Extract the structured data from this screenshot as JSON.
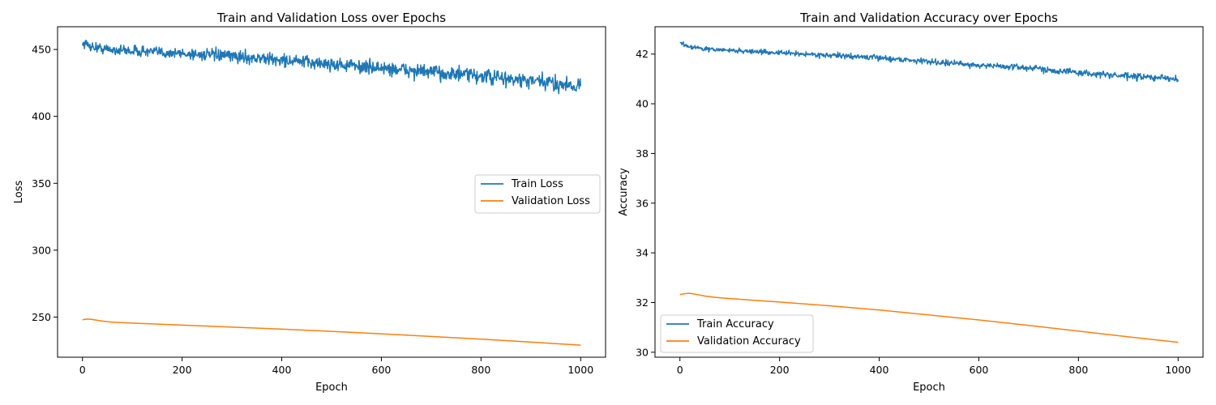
{
  "chart_data": [
    {
      "type": "line",
      "title": "Train and Validation Loss over Epochs",
      "xlabel": "Epoch",
      "ylabel": "Loss",
      "xlim": [
        -50,
        1050
      ],
      "ylim": [
        220,
        467
      ],
      "xticks": [
        0,
        200,
        400,
        600,
        800,
        1000
      ],
      "yticks": [
        250,
        300,
        350,
        400,
        450
      ],
      "legend_position": "center-right",
      "grid": false,
      "series": [
        {
          "name": "Train Loss",
          "color": "#1f77b4",
          "noise": 3.5,
          "points": [
            [
              0,
              455
            ],
            [
              20,
              452
            ],
            [
              50,
              450
            ],
            [
              100,
              449
            ],
            [
              200,
              447
            ],
            [
              300,
              445
            ],
            [
              400,
              442
            ],
            [
              500,
              439
            ],
            [
              600,
              436
            ],
            [
              700,
              433
            ],
            [
              800,
              430
            ],
            [
              900,
              426
            ],
            [
              1000,
              423
            ]
          ]
        },
        {
          "name": "Validation Loss",
          "color": "#ff7f0e",
          "noise": 0,
          "points": [
            [
              0,
              248
            ],
            [
              10,
              248.5
            ],
            [
              20,
              248.2
            ],
            [
              40,
              247
            ],
            [
              60,
              246.2
            ],
            [
              100,
              245.5
            ],
            [
              200,
              244
            ],
            [
              300,
              242.5
            ],
            [
              400,
              241
            ],
            [
              500,
              239.3
            ],
            [
              600,
              237.5
            ],
            [
              700,
              235.5
            ],
            [
              800,
              233.5
            ],
            [
              900,
              231.3
            ],
            [
              1000,
              229
            ]
          ]
        }
      ]
    },
    {
      "type": "line",
      "title": "Train and Validation Accuracy over Epochs",
      "xlabel": "Epoch",
      "ylabel": "Accuracy",
      "xlim": [
        -50,
        1050
      ],
      "ylim": [
        29.8,
        43.1
      ],
      "xticks": [
        0,
        200,
        400,
        600,
        800,
        1000
      ],
      "yticks": [
        30,
        32,
        34,
        36,
        38,
        40,
        42
      ],
      "legend_position": "lower-left",
      "grid": false,
      "series": [
        {
          "name": "Train Accuracy",
          "color": "#1f77b4",
          "noise": 0.08,
          "points": [
            [
              0,
              42.45
            ],
            [
              20,
              42.3
            ],
            [
              50,
              42.2
            ],
            [
              100,
              42.15
            ],
            [
              200,
              42.05
            ],
            [
              300,
              41.95
            ],
            [
              400,
              41.85
            ],
            [
              500,
              41.7
            ],
            [
              600,
              41.55
            ],
            [
              700,
              41.45
            ],
            [
              800,
              41.25
            ],
            [
              900,
              41.1
            ],
            [
              1000,
              41.0
            ]
          ]
        },
        {
          "name": "Validation Accuracy",
          "color": "#ff7f0e",
          "noise": 0,
          "points": [
            [
              0,
              32.32
            ],
            [
              10,
              32.36
            ],
            [
              20,
              32.37
            ],
            [
              35,
              32.32
            ],
            [
              50,
              32.26
            ],
            [
              75,
              32.2
            ],
            [
              100,
              32.16
            ],
            [
              200,
              32.02
            ],
            [
              300,
              31.87
            ],
            [
              400,
              31.7
            ],
            [
              500,
              31.5
            ],
            [
              600,
              31.3
            ],
            [
              700,
              31.08
            ],
            [
              800,
              30.85
            ],
            [
              900,
              30.62
            ],
            [
              1000,
              30.4
            ]
          ]
        }
      ]
    }
  ]
}
